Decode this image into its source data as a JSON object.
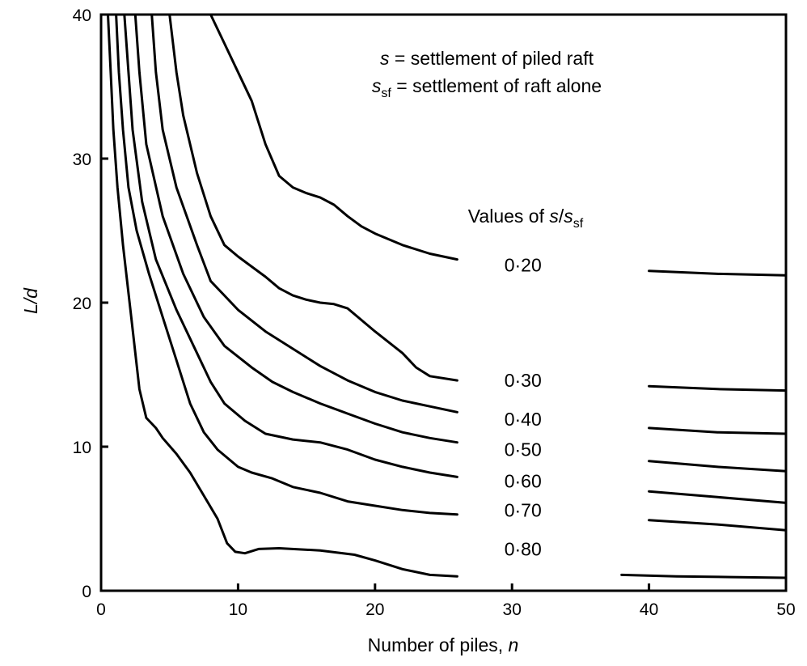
{
  "chart_data": {
    "type": "line",
    "xlabel": "Number of piles, ",
    "xlabel_var": "n",
    "ylabel": "L/d",
    "xlim": [
      0,
      50
    ],
    "ylim": [
      0,
      40
    ],
    "xticks": [
      "0",
      "10",
      "20",
      "30",
      "40",
      "50"
    ],
    "yticks": [
      "0",
      "10",
      "20",
      "30",
      "40"
    ],
    "grid": false,
    "notes": {
      "line1_var": "s",
      "line1_text": " = settlement of piled raft",
      "line2_var": "s",
      "line2_sub": "sf",
      "line2_text": " = settlement of raft alone"
    },
    "legend": {
      "prefix": "Values of ",
      "var": "s",
      "slash": "/",
      "var2": "s",
      "sub": "sf"
    },
    "series": [
      {
        "name": "0·20",
        "label_x": 30.8,
        "label_y": 22.6,
        "points": [
          [
            8,
            40
          ],
          [
            9,
            38
          ],
          [
            10,
            36
          ],
          [
            11,
            34
          ],
          [
            12,
            31
          ],
          [
            13,
            28.8
          ],
          [
            14,
            28
          ],
          [
            15,
            27.6
          ],
          [
            16,
            27.3
          ],
          [
            17,
            26.8
          ],
          [
            18,
            26
          ],
          [
            19,
            25.3
          ],
          [
            20,
            24.8
          ],
          [
            22,
            24
          ],
          [
            24,
            23.4
          ],
          [
            26,
            23
          ],
          [
            28,
            22.7
          ],
          [
            34,
            22.4
          ],
          [
            40,
            22.2
          ],
          [
            45,
            22
          ],
          [
            50,
            21.9
          ]
        ]
      },
      {
        "name": "0·30",
        "label_x": 30.8,
        "label_y": 14.6,
        "points": [
          [
            5,
            40
          ],
          [
            5.5,
            36
          ],
          [
            6,
            33
          ],
          [
            7,
            29
          ],
          [
            8,
            26
          ],
          [
            9,
            24
          ],
          [
            10,
            23.2
          ],
          [
            11,
            22.5
          ],
          [
            12,
            21.8
          ],
          [
            13,
            21
          ],
          [
            14,
            20.5
          ],
          [
            15,
            20.2
          ],
          [
            16,
            20
          ],
          [
            17,
            19.9
          ],
          [
            18,
            19.6
          ],
          [
            20,
            18
          ],
          [
            22,
            16.5
          ],
          [
            23,
            15.5
          ],
          [
            24,
            14.9
          ],
          [
            26,
            14.6
          ],
          [
            28,
            14.5
          ],
          [
            34,
            14.4
          ],
          [
            40,
            14.2
          ],
          [
            45,
            14
          ],
          [
            50,
            13.9
          ]
        ]
      },
      {
        "name": "0·40",
        "label_x": 30.8,
        "label_y": 11.9,
        "points": [
          [
            3.7,
            40
          ],
          [
            4,
            36
          ],
          [
            4.5,
            32
          ],
          [
            5.5,
            28
          ],
          [
            7,
            24
          ],
          [
            8,
            21.5
          ],
          [
            9,
            20.5
          ],
          [
            10,
            19.5
          ],
          [
            12,
            18
          ],
          [
            14,
            16.8
          ],
          [
            16,
            15.6
          ],
          [
            18,
            14.6
          ],
          [
            20,
            13.8
          ],
          [
            22,
            13.2
          ],
          [
            24,
            12.8
          ],
          [
            26,
            12.4
          ],
          [
            28,
            12.1
          ],
          [
            34,
            11.8
          ],
          [
            40,
            11.3
          ],
          [
            45,
            11
          ],
          [
            50,
            10.9
          ]
        ]
      },
      {
        "name": "0·50",
        "label_x": 30.8,
        "label_y": 9.8,
        "points": [
          [
            2.5,
            40
          ],
          [
            2.8,
            36
          ],
          [
            3.3,
            31
          ],
          [
            4.5,
            26
          ],
          [
            6,
            22
          ],
          [
            7.5,
            19
          ],
          [
            9,
            17
          ],
          [
            11,
            15.5
          ],
          [
            12.5,
            14.5
          ],
          [
            14,
            13.8
          ],
          [
            16,
            13
          ],
          [
            18,
            12.3
          ],
          [
            20,
            11.6
          ],
          [
            22,
            11
          ],
          [
            24,
            10.6
          ],
          [
            26,
            10.3
          ],
          [
            28,
            10
          ],
          [
            34,
            9.5
          ],
          [
            40,
            9
          ],
          [
            45,
            8.6
          ],
          [
            50,
            8.3
          ]
        ]
      },
      {
        "name": "0·60",
        "label_x": 30.8,
        "label_y": 7.6,
        "points": [
          [
            1.7,
            40
          ],
          [
            2,
            36
          ],
          [
            2.3,
            32
          ],
          [
            3,
            27
          ],
          [
            4,
            23
          ],
          [
            5.5,
            19.5
          ],
          [
            7,
            16.5
          ],
          [
            8,
            14.5
          ],
          [
            9,
            13
          ],
          [
            10.5,
            11.8
          ],
          [
            12,
            10.9
          ],
          [
            14,
            10.5
          ],
          [
            16,
            10.3
          ],
          [
            18,
            9.8
          ],
          [
            20,
            9.1
          ],
          [
            22,
            8.6
          ],
          [
            24,
            8.2
          ],
          [
            26,
            7.9
          ],
          [
            28,
            7.7
          ],
          [
            34,
            7.2
          ],
          [
            40,
            6.9
          ],
          [
            45,
            6.5
          ],
          [
            50,
            6.1
          ]
        ]
      },
      {
        "name": "0·70",
        "label_x": 30.8,
        "label_y": 5.6,
        "points": [
          [
            1.1,
            40
          ],
          [
            1.3,
            36
          ],
          [
            1.6,
            32
          ],
          [
            2,
            28
          ],
          [
            2.6,
            25
          ],
          [
            3.5,
            22
          ],
          [
            4.5,
            19
          ],
          [
            5.5,
            16
          ],
          [
            6.5,
            13
          ],
          [
            7.5,
            11
          ],
          [
            8.5,
            9.8
          ],
          [
            10,
            8.6
          ],
          [
            11,
            8.2
          ],
          [
            12.5,
            7.8
          ],
          [
            14,
            7.2
          ],
          [
            16,
            6.8
          ],
          [
            18,
            6.2
          ],
          [
            20,
            5.9
          ],
          [
            22,
            5.6
          ],
          [
            24,
            5.4
          ],
          [
            26,
            5.3
          ],
          [
            28,
            5.2
          ],
          [
            34,
            5.1
          ],
          [
            40,
            4.9
          ],
          [
            45,
            4.6
          ],
          [
            50,
            4.2
          ]
        ]
      },
      {
        "name": "0·80",
        "label_x": 30.8,
        "label_y": 2.9,
        "points": [
          [
            0.5,
            40
          ],
          [
            0.7,
            36
          ],
          [
            0.9,
            32
          ],
          [
            1.2,
            28
          ],
          [
            1.6,
            24
          ],
          [
            2.2,
            19
          ],
          [
            2.8,
            14
          ],
          [
            3.3,
            12
          ],
          [
            4,
            11.3
          ],
          [
            4.5,
            10.6
          ],
          [
            5.5,
            9.5
          ],
          [
            6.5,
            8.2
          ],
          [
            7.5,
            6.6
          ],
          [
            8.5,
            5
          ],
          [
            9.2,
            3.3
          ],
          [
            9.8,
            2.7
          ],
          [
            10.5,
            2.6
          ],
          [
            11.5,
            2.9
          ],
          [
            13,
            2.95
          ],
          [
            16,
            2.8
          ],
          [
            18.5,
            2.5
          ],
          [
            20,
            2.1
          ],
          [
            22,
            1.5
          ],
          [
            24,
            1.1
          ],
          [
            26,
            1
          ],
          [
            28,
            1.05
          ],
          [
            30,
            1.1
          ],
          [
            32,
            1.15
          ],
          [
            34,
            1.2
          ],
          [
            38,
            1.1
          ],
          [
            42,
            1
          ],
          [
            46,
            0.95
          ],
          [
            50,
            0.9
          ]
        ]
      }
    ]
  }
}
